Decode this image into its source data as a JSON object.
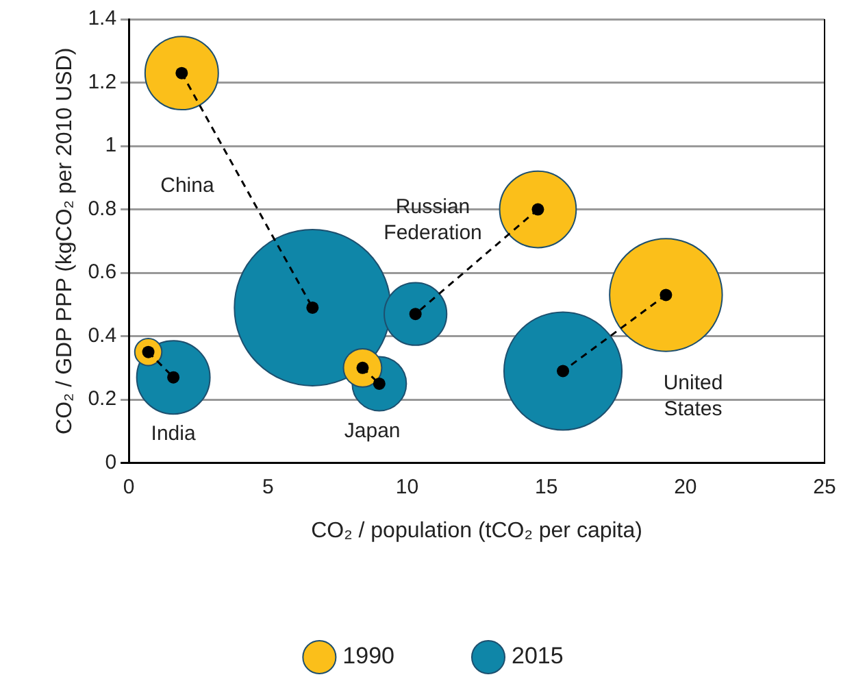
{
  "chart_data": {
    "type": "bubble",
    "xlabel": "CO₂ / population (tCO₂ per capita)",
    "ylabel": "CO₂ / GDP PPP (kgCO₂ per 2010 USD)",
    "xlim": [
      0,
      25
    ],
    "xticks": [
      0,
      5,
      10,
      15,
      20,
      25
    ],
    "ylim": [
      0,
      1.4
    ],
    "yticks": [
      0,
      0.2,
      0.4,
      0.6,
      0.8,
      1,
      1.2,
      1.4
    ],
    "grid": "y",
    "legend": "bottom",
    "marker": "circle",
    "line_style": "dashed",
    "series": [
      {
        "name": "2015",
        "color": "#0f86a8",
        "x": [
          6.6,
          1.6,
          9.0,
          10.3,
          15.6
        ],
        "values": [
          0.49,
          0.27,
          0.25,
          0.47,
          0.29
        ],
        "sizes": [
          1,
          0.22,
          0.12,
          0.16,
          0.57
        ]
      },
      {
        "name": "1990",
        "color": "#fbbf1a",
        "x": [
          1.9,
          0.7,
          8.4,
          14.7,
          19.3
        ],
        "values": [
          1.23,
          0.35,
          0.3,
          0.8,
          0.53
        ],
        "sizes": [
          0.22,
          0.03,
          0.06,
          0.24,
          0.52
        ]
      },
      {
        "type": "line",
        "color": "#000000",
        "x": [
          1.9,
          6.6
        ],
        "values": [
          1.23,
          0.49
        ]
      },
      {
        "type": "line",
        "color": "#000000",
        "x": [
          0.7,
          1.6
        ],
        "values": [
          0.35,
          0.27
        ]
      },
      {
        "type": "line",
        "color": "#000000",
        "x": [
          8.4,
          9.0
        ],
        "values": [
          0.3,
          0.25
        ]
      },
      {
        "type": "line",
        "color": "#000000",
        "x": [
          14.7,
          10.3
        ],
        "values": [
          0.8,
          0.47
        ]
      },
      {
        "type": "line",
        "color": "#000000",
        "x": [
          19.3,
          15.6
        ],
        "values": [
          0.53,
          0.29
        ]
      }
    ],
    "annotations": [
      "China",
      "Russian\nFederation",
      "India",
      "Japan",
      "United\nStates"
    ]
  }
}
